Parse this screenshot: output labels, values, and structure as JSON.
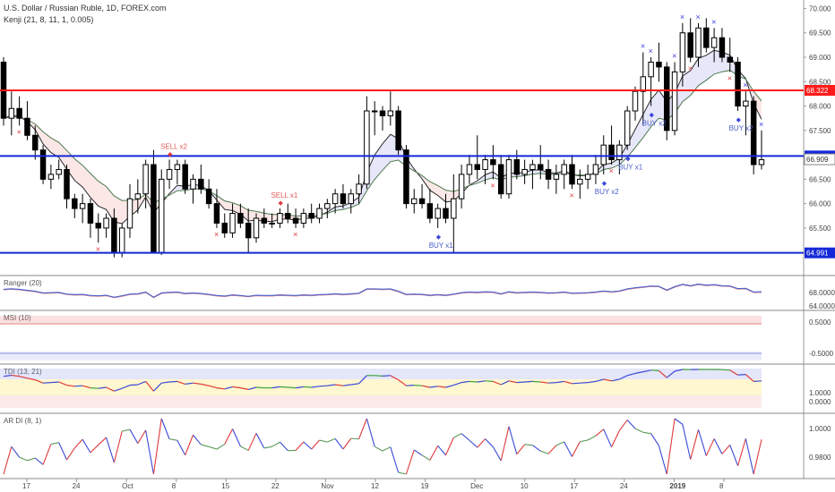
{
  "header": {
    "title": "U.S. Dollar / Russian Ruble, 1D, FOREX.com",
    "indicator": "Kenji (21, 8, 11, 1, 0.005)"
  },
  "colors": {
    "red_level": "#ff1a1a",
    "blue_level": "#1428d8",
    "ranger_red": "#e86b6b",
    "ranger_blue": "#4a5ec8",
    "tdi_blue": "#3b49d8",
    "tdi_red": "#e03a3a",
    "tdi_green": "#3ea33e"
  },
  "chart_data": [
    {
      "type": "candlestick",
      "pane": "main",
      "ylim": [
        64.6,
        70.1
      ],
      "y_ticks": [
        "70.000",
        "69.500",
        "69.000",
        "68.500",
        "68.000",
        "67.500",
        "66.500",
        "66.000",
        "65.500",
        "65.000"
      ],
      "x_ticks": [
        "17",
        "24",
        "Oct",
        "8",
        "15",
        "22",
        "Nov",
        "12",
        "19",
        "Dec",
        "10",
        "17",
        "24",
        "2019",
        "8"
      ],
      "levels": [
        {
          "value": "68.322",
          "color": "red"
        },
        {
          "value": "66.977",
          "color": "blue"
        },
        {
          "value": "64.991",
          "color": "blue"
        }
      ],
      "current_price": "66.909",
      "candles": [
        [
          68.9,
          69.0,
          67.6,
          67.75
        ],
        [
          67.75,
          68.3,
          67.4,
          67.95
        ],
        [
          67.95,
          68.2,
          67.6,
          67.75
        ],
        [
          67.75,
          68.1,
          67.3,
          67.4
        ],
        [
          67.4,
          67.6,
          66.9,
          67.1
        ],
        [
          67.1,
          67.2,
          66.4,
          66.5
        ],
        [
          66.5,
          66.8,
          66.3,
          66.6
        ],
        [
          66.6,
          66.9,
          66.5,
          66.7
        ],
        [
          66.7,
          66.8,
          65.9,
          66.1
        ],
        [
          66.1,
          66.2,
          65.7,
          65.9
        ],
        [
          65.9,
          66.2,
          65.6,
          66.0
        ],
        [
          66.0,
          66.1,
          65.3,
          65.6
        ],
        [
          65.6,
          65.8,
          65.2,
          65.5
        ],
        [
          65.5,
          65.8,
          65.3,
          65.7
        ],
        [
          65.7,
          65.9,
          64.9,
          65.0
        ],
        [
          65.0,
          65.6,
          64.9,
          65.5
        ],
        [
          65.5,
          66.4,
          65.3,
          66.1
        ],
        [
          66.1,
          66.5,
          65.8,
          66.2
        ],
        [
          66.2,
          66.9,
          65.9,
          66.8
        ],
        [
          66.8,
          67.1,
          65.0,
          65.0
        ],
        [
          65.0,
          66.7,
          64.95,
          66.5
        ],
        [
          66.5,
          66.9,
          66.3,
          66.7
        ],
        [
          66.7,
          66.9,
          66.4,
          66.8
        ],
        [
          66.8,
          66.9,
          66.2,
          66.3
        ],
        [
          66.3,
          66.6,
          66.0,
          66.5
        ],
        [
          66.5,
          66.8,
          66.2,
          66.3
        ],
        [
          66.3,
          66.5,
          65.9,
          66.0
        ],
        [
          66.0,
          66.3,
          65.5,
          65.6
        ],
        [
          65.6,
          65.8,
          65.3,
          65.4
        ],
        [
          65.4,
          66.0,
          65.3,
          65.8
        ],
        [
          65.8,
          66.0,
          65.5,
          65.6
        ],
        [
          65.6,
          65.9,
          65.0,
          65.3
        ],
        [
          65.3,
          65.8,
          65.2,
          65.7
        ],
        [
          65.7,
          65.9,
          65.5,
          65.6
        ],
        [
          65.6,
          65.8,
          65.5,
          65.6
        ],
        [
          65.6,
          65.9,
          65.5,
          65.8
        ],
        [
          65.8,
          66.0,
          65.6,
          65.7
        ],
        [
          65.7,
          65.9,
          65.5,
          65.6
        ],
        [
          65.6,
          65.9,
          65.5,
          65.8
        ],
        [
          65.8,
          66.0,
          65.6,
          65.7
        ],
        [
          65.7,
          66.0,
          65.6,
          65.9
        ],
        [
          65.9,
          66.1,
          65.7,
          66.0
        ],
        [
          66.0,
          66.3,
          65.8,
          66.2
        ],
        [
          66.2,
          66.4,
          65.9,
          66.0
        ],
        [
          66.0,
          66.3,
          65.8,
          66.2
        ],
        [
          66.2,
          66.6,
          66.0,
          66.4
        ],
        [
          66.4,
          68.2,
          66.3,
          67.9
        ],
        [
          67.9,
          68.1,
          67.4,
          67.9
        ],
        [
          67.9,
          68.0,
          67.5,
          67.8
        ],
        [
          67.8,
          68.3,
          67.6,
          67.9
        ],
        [
          67.9,
          68.0,
          67.0,
          67.1
        ],
        [
          67.1,
          67.2,
          65.9,
          66.0
        ],
        [
          66.0,
          66.3,
          65.8,
          66.1
        ],
        [
          66.1,
          66.4,
          65.9,
          66.0
        ],
        [
          66.0,
          66.3,
          65.6,
          65.7
        ],
        [
          65.7,
          66.0,
          65.5,
          65.9
        ],
        [
          65.9,
          66.2,
          65.6,
          65.7
        ],
        [
          65.7,
          66.6,
          65.0,
          66.1
        ],
        [
          66.1,
          66.8,
          65.9,
          66.6
        ],
        [
          66.6,
          67.0,
          66.4,
          66.8
        ],
        [
          66.8,
          67.4,
          66.5,
          66.7
        ],
        [
          66.7,
          67.0,
          66.4,
          66.9
        ],
        [
          66.9,
          67.2,
          66.5,
          66.8
        ],
        [
          66.8,
          67.0,
          66.1,
          66.2
        ],
        [
          66.2,
          67.0,
          66.1,
          66.9
        ],
        [
          66.9,
          67.1,
          66.5,
          66.6
        ],
        [
          66.6,
          66.9,
          66.4,
          66.7
        ],
        [
          66.7,
          66.9,
          66.3,
          66.8
        ],
        [
          66.8,
          67.2,
          66.5,
          66.7
        ],
        [
          66.7,
          66.9,
          66.3,
          66.5
        ],
        [
          66.5,
          66.8,
          66.2,
          66.6
        ],
        [
          66.6,
          66.9,
          66.3,
          66.8
        ],
        [
          66.8,
          67.0,
          66.3,
          66.4
        ],
        [
          66.4,
          66.7,
          66.1,
          66.5
        ],
        [
          66.5,
          66.8,
          66.3,
          66.6
        ],
        [
          66.6,
          67.0,
          66.4,
          66.8
        ],
        [
          66.8,
          67.4,
          66.6,
          67.2
        ],
        [
          67.2,
          67.6,
          66.8,
          66.9
        ],
        [
          66.9,
          67.3,
          66.6,
          67.2
        ],
        [
          67.2,
          68.0,
          67.1,
          67.9
        ],
        [
          67.9,
          68.4,
          67.7,
          68.3
        ],
        [
          68.3,
          69.1,
          67.6,
          68.6
        ],
        [
          68.6,
          69.0,
          68.0,
          68.9
        ],
        [
          68.9,
          69.3,
          68.5,
          68.8
        ],
        [
          68.8,
          68.9,
          67.3,
          67.5
        ],
        [
          67.5,
          68.9,
          67.4,
          68.7
        ],
        [
          68.7,
          69.7,
          68.4,
          69.5
        ],
        [
          69.5,
          69.8,
          68.9,
          69.0
        ],
        [
          69.0,
          69.7,
          68.8,
          69.6
        ],
        [
          69.6,
          69.8,
          69.1,
          69.2
        ],
        [
          69.2,
          69.6,
          68.9,
          69.4
        ],
        [
          69.4,
          69.6,
          68.9,
          69.0
        ],
        [
          69.0,
          69.4,
          68.7,
          68.9
        ],
        [
          68.9,
          69.0,
          67.9,
          68.0
        ],
        [
          68.0,
          68.3,
          67.4,
          68.1
        ],
        [
          68.1,
          68.2,
          66.6,
          66.8
        ],
        [
          66.8,
          67.5,
          66.7,
          66.9
        ]
      ],
      "annotations": [
        "SELL x2",
        "SELL x1",
        "BUY x1",
        "BUY x2",
        "BUY x1",
        "BUY x2",
        "BUY x2"
      ]
    },
    {
      "type": "line",
      "pane": "ranger",
      "title": "Ranger (20)",
      "y_ticks": [
        "68.0000",
        "64.0000"
      ]
    },
    {
      "type": "line",
      "pane": "msi",
      "title": "MSI (10)",
      "y_ticks": [
        "0.5000",
        "-0.5000"
      ]
    },
    {
      "type": "line",
      "pane": "tdi",
      "title": "TDI (13, 21)",
      "y_ticks": [
        "1.0000",
        "0.0000"
      ]
    },
    {
      "type": "line",
      "pane": "ardi",
      "title": "AR DI (8, 1)",
      "y_ticks": [
        "1.0000",
        "0.9800"
      ]
    }
  ]
}
